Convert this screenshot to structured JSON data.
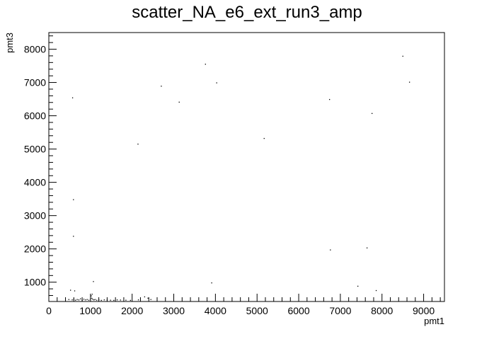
{
  "chart_data": {
    "type": "scatter",
    "title": "scatter_NA_e6_ext_run3_amp",
    "xlabel": "pmt1",
    "ylabel": "pmt3",
    "xlim": [
      0,
      9500
    ],
    "ylim": [
      420,
      8500
    ],
    "x_ticks": [
      0,
      1000,
      2000,
      3000,
      4000,
      5000,
      6000,
      7000,
      8000,
      9000
    ],
    "y_ticks": [
      1000,
      2000,
      3000,
      4000,
      5000,
      6000,
      7000,
      8000
    ],
    "x": [
      570,
      3760,
      4030,
      2700,
      3130,
      8500,
      8660,
      6740,
      7760,
      2140,
      5170,
      590,
      590,
      6760,
      7640,
      1070,
      3910,
      7420,
      7860,
      480,
      560,
      600,
      640,
      680,
      720,
      760,
      800,
      840,
      880,
      920,
      960,
      1000,
      1030,
      1050,
      1080,
      1110,
      1150,
      1200,
      1260,
      1330,
      1400,
      1480,
      1560,
      1640,
      1720,
      1850,
      1960,
      2150,
      2300,
      2380,
      2450,
      1020,
      1040,
      520,
      620
    ],
    "y": [
      6540,
      7550,
      6990,
      6890,
      6410,
      7790,
      7010,
      6490,
      6070,
      5150,
      5320,
      3480,
      2380,
      1970,
      2030,
      1020,
      980,
      880,
      750,
      480,
      470,
      490,
      460,
      480,
      470,
      500,
      460,
      490,
      470,
      480,
      460,
      500,
      520,
      490,
      470,
      480,
      460,
      470,
      455,
      470,
      465,
      460,
      455,
      470,
      465,
      460,
      455,
      470,
      560,
      520,
      480,
      590,
      640,
      760,
      740
    ]
  }
}
